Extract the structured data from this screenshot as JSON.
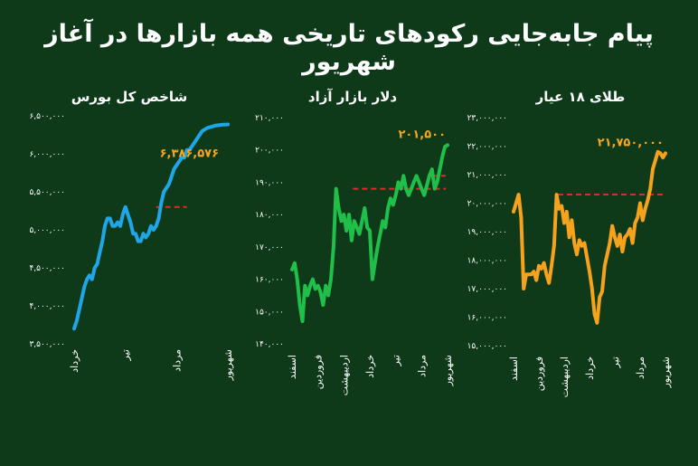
{
  "title": "پیام جابه‌جایی رکودهای تاریخی همه بازارها در آغاز شهریور",
  "colors": {
    "background": "#0e3a1a",
    "bourse": "#1ea7e8",
    "dollar": "#1fbf4a",
    "gold": "#f7a21b",
    "record_line": "#e02a2a",
    "last_label": "#f5a623"
  },
  "chart_data": [
    {
      "type": "line",
      "title": "شاخص کل بورس",
      "y_ticks": [
        "۶,۵۰۰,۰۰۰",
        "۶,۰۰۰,۰۰۰",
        "۵,۵۰۰,۰۰۰",
        "۵,۰۰۰,۰۰۰",
        "۴,۵۰۰,۰۰۰",
        "۴,۰۰۰,۰۰۰",
        "۳,۵۰۰,۰۰۰"
      ],
      "ylim": [
        3500000,
        6500000
      ],
      "x_ticks": [
        "خرداد",
        "تیر",
        "مرداد",
        "شهریور"
      ],
      "last_value_label": "۶,۳۸۶,۵۷۶",
      "record_value": 5300000,
      "series": [
        {
          "x": [
            0,
            0.05,
            0.1,
            0.15,
            0.2,
            0.25,
            0.3,
            0.35,
            0.4,
            0.45,
            0.5,
            0.55,
            0.6,
            0.65,
            0.7,
            0.75,
            0.8,
            0.85,
            0.9,
            0.95,
            1,
            1.05,
            1.1,
            1.15,
            1.2,
            1.25,
            1.3,
            1.35,
            1.4,
            1.45,
            1.5,
            1.55,
            1.6,
            1.65,
            1.7,
            1.75,
            1.8,
            1.85,
            1.9,
            1.95,
            2,
            2.05,
            2.1,
            2.15,
            2.2,
            2.25,
            2.3,
            2.35,
            2.4,
            2.45,
            2.5,
            2.55,
            2.6,
            2.65,
            2.7,
            2.75,
            2.8,
            2.85,
            2.9,
            2.95,
            3
          ],
          "values": [
            3700000,
            3800000,
            3950000,
            4100000,
            4250000,
            4350000,
            4400000,
            4350000,
            4500000,
            4550000,
            4700000,
            4850000,
            5050000,
            5150000,
            5150000,
            5050000,
            5050000,
            5100000,
            5050000,
            5200000,
            5300000,
            5200000,
            5100000,
            4950000,
            4950000,
            4850000,
            4850000,
            4950000,
            4900000,
            4950000,
            5050000,
            5000000,
            5050000,
            5150000,
            5350000,
            5500000,
            5550000,
            5600000,
            5700000,
            5800000,
            5850000,
            5900000,
            5950000,
            5950000,
            6050000,
            6050000,
            6100000,
            6150000,
            6200000,
            6250000,
            6300000,
            6320000,
            6340000,
            6350000,
            6360000,
            6370000,
            6375000,
            6380000,
            6383000,
            6385000,
            6386576
          ]
        }
      ]
    },
    {
      "type": "line",
      "title": "دلار بازار آزاد",
      "y_ticks": [
        "۲۱۰,۰۰۰",
        "۲۰۰,۰۰۰",
        "۱۹۰,۰۰۰",
        "۱۸۰,۰۰۰",
        "۱۷۰,۰۰۰",
        "۱۶۰,۰۰۰",
        "۱۵۰,۰۰۰",
        "۱۴۰,۰۰۰"
      ],
      "ylim": [
        140000,
        210000
      ],
      "x_ticks": [
        "اسفند",
        "فروردین",
        "اردیبهشت",
        "خرداد",
        "تیر",
        "مرداد",
        "شهریور"
      ],
      "last_value_label": "۲۰۱,۵۰۰",
      "record_value": 188000,
      "secondary_record_value": 192000,
      "series": [
        {
          "x": [
            0,
            0.1,
            0.2,
            0.3,
            0.4,
            0.5,
            0.6,
            0.7,
            0.8,
            0.9,
            1,
            1.1,
            1.2,
            1.3,
            1.4,
            1.5,
            1.6,
            1.7,
            1.8,
            1.9,
            2,
            2.1,
            2.2,
            2.3,
            2.4,
            2.5,
            2.6,
            2.7,
            2.8,
            2.9,
            3,
            3.1,
            3.2,
            3.3,
            3.4,
            3.5,
            3.6,
            3.7,
            3.8,
            3.9,
            4,
            4.1,
            4.2,
            4.3,
            4.4,
            4.5,
            4.6,
            4.7,
            4.8,
            4.9,
            5,
            5.1,
            5.2,
            5.3,
            5.4,
            5.5,
            5.6,
            5.7,
            5.8,
            5.9,
            6
          ],
          "values": [
            163000,
            165000,
            160000,
            152000,
            147000,
            158000,
            155000,
            158000,
            160000,
            157000,
            158000,
            156000,
            152000,
            158000,
            155000,
            160000,
            170000,
            188000,
            182000,
            178000,
            180000,
            175000,
            180000,
            172000,
            178000,
            176000,
            174000,
            178000,
            182000,
            176000,
            175000,
            160000,
            165000,
            170000,
            174000,
            178000,
            176000,
            182000,
            185000,
            183000,
            186000,
            190000,
            188000,
            192000,
            188000,
            186000,
            188000,
            190000,
            192000,
            190000,
            188000,
            186000,
            189000,
            192000,
            194000,
            188000,
            190000,
            194000,
            198000,
            201000,
            201500
          ]
        }
      ]
    },
    {
      "type": "line",
      "title": "طلای ۱۸ عیار",
      "y_ticks": [
        "۲۳,۰۰۰,۰۰۰",
        "۲۲,۰۰۰,۰۰۰",
        "۲۱,۰۰۰,۰۰۰",
        "۲۰,۰۰۰,۰۰۰",
        "۱۹,۰۰۰,۰۰۰",
        "۱۸,۰۰۰,۰۰۰",
        "۱۷,۰۰۰,۰۰۰",
        "۱۶,۰۰۰,۰۰۰",
        "۱۵,۰۰۰,۰۰۰"
      ],
      "ylim": [
        15000000,
        23000000
      ],
      "x_ticks": [
        "اسفند",
        "فروردین",
        "اردیبهشت",
        "خرداد",
        "تیر",
        "مرداد",
        "شهریور"
      ],
      "last_value_label": "۲۱,۷۵۰,۰۰۰",
      "record_value": 20300000,
      "series": [
        {
          "x": [
            0,
            0.1,
            0.2,
            0.3,
            0.4,
            0.5,
            0.6,
            0.7,
            0.8,
            0.9,
            1,
            1.1,
            1.2,
            1.3,
            1.4,
            1.5,
            1.6,
            1.7,
            1.8,
            1.9,
            2,
            2.1,
            2.2,
            2.3,
            2.4,
            2.5,
            2.6,
            2.7,
            2.8,
            2.9,
            3,
            3.1,
            3.2,
            3.3,
            3.4,
            3.5,
            3.6,
            3.7,
            3.8,
            3.9,
            4,
            4.1,
            4.2,
            4.3,
            4.4,
            4.5,
            4.6,
            4.7,
            4.8,
            4.9,
            5,
            5.1,
            5.2,
            5.3,
            5.4,
            5.5,
            5.6,
            5.7,
            5.8,
            5.9,
            6
          ],
          "values": [
            19700000,
            20000000,
            20300000,
            19500000,
            17000000,
            17500000,
            17500000,
            17500000,
            17600000,
            17300000,
            17800000,
            17700000,
            17900000,
            17500000,
            17200000,
            17800000,
            18500000,
            20300000,
            19800000,
            19900000,
            19300000,
            19700000,
            18800000,
            19400000,
            18600000,
            18200000,
            18700000,
            18500000,
            18600000,
            18100000,
            17600000,
            17000000,
            16100000,
            15800000,
            16700000,
            16900000,
            17800000,
            18200000,
            18600000,
            19200000,
            18800000,
            18500000,
            18900000,
            18300000,
            18800000,
            18900000,
            19100000,
            18600000,
            19300000,
            19500000,
            20000000,
            19400000,
            19800000,
            20100000,
            20500000,
            21200000,
            21500000,
            21800000,
            21750000,
            21600000,
            21750000
          ]
        }
      ]
    }
  ]
}
